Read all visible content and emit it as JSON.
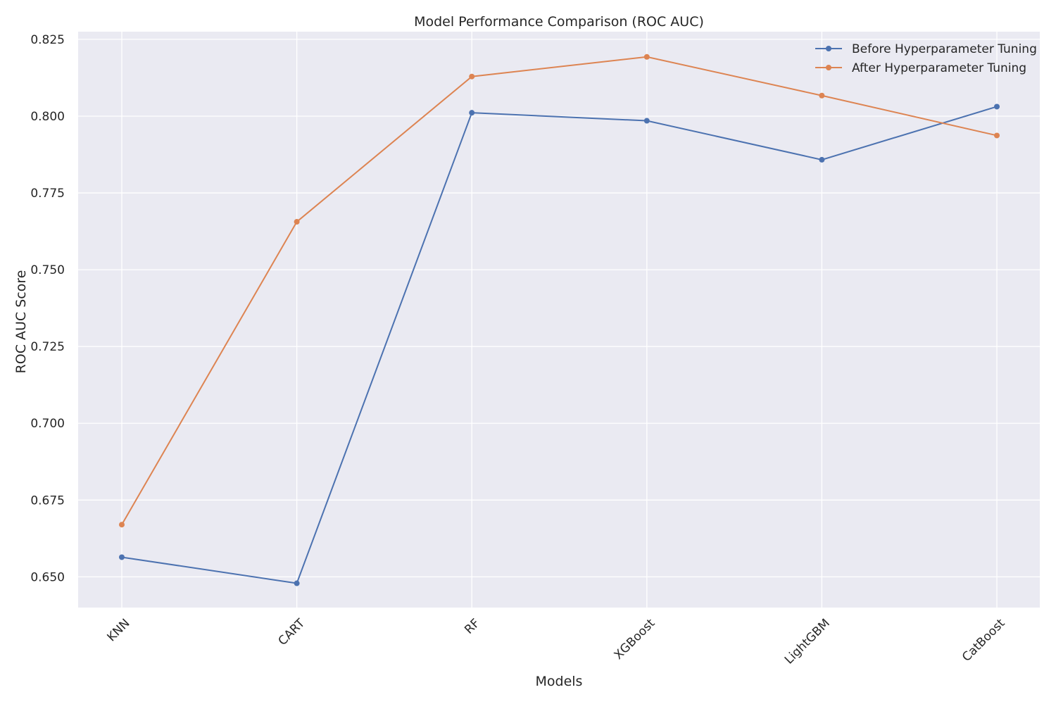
{
  "chart_data": {
    "type": "line",
    "title": "Model Performance Comparison (ROC AUC)",
    "xlabel": "Models",
    "ylabel": "ROC AUC Score",
    "categories": [
      "KNN",
      "CART",
      "RF",
      "XGBoost",
      "LightGBM",
      "CatBoost"
    ],
    "series": [
      {
        "name": "Before Hyperparameter Tuning",
        "color": "#4c72b0",
        "values": [
          0.6564,
          0.6479,
          0.8011,
          0.7985,
          0.7858,
          0.8031
        ]
      },
      {
        "name": "After Hyperparameter Tuning",
        "color": "#dd8452",
        "values": [
          0.667,
          0.7656,
          0.8129,
          0.8193,
          0.8067,
          0.7937
        ]
      }
    ],
    "ylim": [
      0.64,
      0.8275
    ],
    "yticks": [
      "0.650",
      "0.675",
      "0.700",
      "0.725",
      "0.750",
      "0.775",
      "0.800",
      "0.825"
    ],
    "grid": true,
    "legend_position": "top-right",
    "plot_background": "#eaeaf2",
    "grid_color": "#ffffff"
  }
}
